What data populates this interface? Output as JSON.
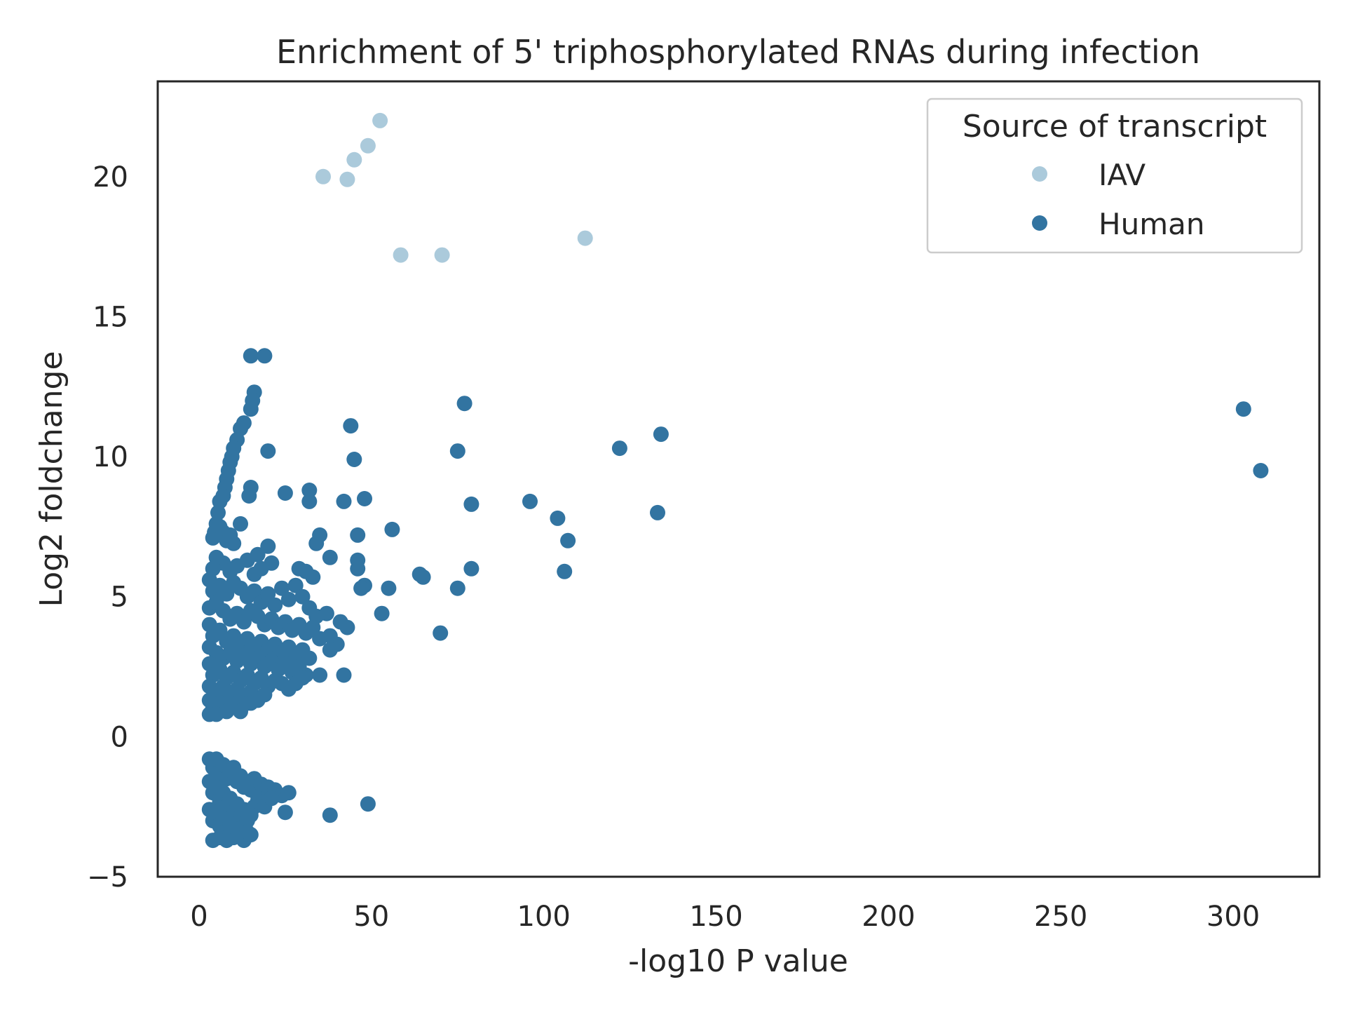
{
  "chart_data": {
    "type": "scatter",
    "title": "Enrichment of 5' triphosphorylated RNAs during infection",
    "xlabel": "-log10 P value",
    "ylabel": "Log2 foldchange",
    "xlim": [
      -12,
      325
    ],
    "ylim": [
      -5,
      23.4
    ],
    "xticks": [
      0,
      50,
      100,
      150,
      200,
      250,
      300
    ],
    "yticks": [
      -5,
      0,
      5,
      10,
      15,
      20
    ],
    "xtick_labels": [
      "0",
      "50",
      "100",
      "150",
      "200",
      "250",
      "300"
    ],
    "ytick_labels": [
      "−5",
      "0",
      "5",
      "10",
      "15",
      "20"
    ],
    "grid": false,
    "legend": {
      "title": "Source of transcript",
      "position": "top-right"
    },
    "series": [
      {
        "name": "IAV",
        "color": "#abcadb",
        "points": [
          [
            36,
            20
          ],
          [
            43,
            19.9
          ],
          [
            45,
            20.6
          ],
          [
            49,
            21.1
          ],
          [
            52.5,
            22
          ],
          [
            58.5,
            17.2
          ],
          [
            70.5,
            17.2
          ],
          [
            112,
            17.8
          ]
        ]
      },
      {
        "name": "Human",
        "color": "#3274a1",
        "points": [
          [
            15,
            13.6
          ],
          [
            19,
            13.6
          ],
          [
            16,
            12.3
          ],
          [
            15.5,
            12.0
          ],
          [
            15,
            11.7
          ],
          [
            13,
            11.2
          ],
          [
            12,
            11.0
          ],
          [
            11,
            10.6
          ],
          [
            10,
            10.3
          ],
          [
            9.5,
            10.0
          ],
          [
            9,
            9.8
          ],
          [
            8.5,
            9.5
          ],
          [
            8,
            9.2
          ],
          [
            7.5,
            8.9
          ],
          [
            7,
            8.6
          ],
          [
            6,
            8.4
          ],
          [
            5.5,
            8.0
          ],
          [
            5,
            7.6
          ],
          [
            4.5,
            7.3
          ],
          [
            4,
            7.1
          ],
          [
            5,
            7.4
          ],
          [
            6,
            7.5
          ],
          [
            7,
            7.3
          ],
          [
            8,
            7.0
          ],
          [
            9,
            7.2
          ],
          [
            10,
            6.9
          ],
          [
            12,
            7.6
          ],
          [
            15,
            8.9
          ],
          [
            14.5,
            8.6
          ],
          [
            17,
            6.5
          ],
          [
            20,
            6.8
          ],
          [
            21,
            6.2
          ],
          [
            18,
            6.0
          ],
          [
            16,
            5.8
          ],
          [
            14,
            6.3
          ],
          [
            11,
            6.1
          ],
          [
            9,
            5.9
          ],
          [
            7,
            6.2
          ],
          [
            5,
            6.4
          ],
          [
            4,
            6.0
          ],
          [
            3,
            5.6
          ],
          [
            4,
            5.2
          ],
          [
            6,
            5.4
          ],
          [
            8,
            5.1
          ],
          [
            10,
            5.5
          ],
          [
            12,
            5.3
          ],
          [
            14,
            5.0
          ],
          [
            16,
            5.2
          ],
          [
            18,
            4.8
          ],
          [
            20,
            5.1
          ],
          [
            22,
            4.7
          ],
          [
            24,
            5.3
          ],
          [
            26,
            4.9
          ],
          [
            28,
            5.4
          ],
          [
            30,
            5.0
          ],
          [
            32,
            4.6
          ],
          [
            34,
            4.3
          ],
          [
            31,
            5.9
          ],
          [
            29,
            6.0
          ],
          [
            33,
            5.7
          ],
          [
            3,
            4.6
          ],
          [
            5,
            4.8
          ],
          [
            7,
            4.5
          ],
          [
            9,
            4.2
          ],
          [
            11,
            4.4
          ],
          [
            13,
            4.1
          ],
          [
            15,
            4.5
          ],
          [
            17,
            4.3
          ],
          [
            19,
            4.0
          ],
          [
            21,
            4.2
          ],
          [
            23,
            3.9
          ],
          [
            25,
            4.1
          ],
          [
            27,
            3.8
          ],
          [
            29,
            4.0
          ],
          [
            31,
            3.7
          ],
          [
            33,
            3.9
          ],
          [
            35,
            3.5
          ],
          [
            3,
            4.0
          ],
          [
            4,
            3.6
          ],
          [
            6,
            3.8
          ],
          [
            8,
            3.4
          ],
          [
            10,
            3.6
          ],
          [
            12,
            3.3
          ],
          [
            14,
            3.5
          ],
          [
            16,
            3.2
          ],
          [
            18,
            3.4
          ],
          [
            20,
            3.1
          ],
          [
            22,
            3.3
          ],
          [
            24,
            3.0
          ],
          [
            26,
            3.2
          ],
          [
            28,
            2.9
          ],
          [
            30,
            3.1
          ],
          [
            32,
            2.8
          ],
          [
            3,
            3.2
          ],
          [
            5,
            3.0
          ],
          [
            7,
            2.8
          ],
          [
            9,
            3.0
          ],
          [
            11,
            2.7
          ],
          [
            13,
            2.9
          ],
          [
            15,
            2.6
          ],
          [
            17,
            2.8
          ],
          [
            19,
            2.5
          ],
          [
            21,
            2.7
          ],
          [
            23,
            2.4
          ],
          [
            25,
            2.6
          ],
          [
            27,
            2.3
          ],
          [
            29,
            2.5
          ],
          [
            31,
            2.2
          ],
          [
            3,
            2.6
          ],
          [
            4,
            2.2
          ],
          [
            6,
            2.4
          ],
          [
            8,
            2.1
          ],
          [
            10,
            2.3
          ],
          [
            12,
            2.0
          ],
          [
            14,
            2.2
          ],
          [
            16,
            1.9
          ],
          [
            18,
            2.1
          ],
          [
            20,
            1.8
          ],
          [
            22,
            2.0
          ],
          [
            24,
            1.9
          ],
          [
            26,
            1.7
          ],
          [
            28,
            1.9
          ],
          [
            30,
            2.1
          ],
          [
            3,
            1.8
          ],
          [
            5,
            1.6
          ],
          [
            7,
            1.8
          ],
          [
            9,
            1.5
          ],
          [
            11,
            1.7
          ],
          [
            13,
            1.4
          ],
          [
            15,
            1.6
          ],
          [
            17,
            1.3
          ],
          [
            19,
            1.5
          ],
          [
            3,
            1.3
          ],
          [
            4,
            1.0
          ],
          [
            6,
            1.2
          ],
          [
            8,
            0.9
          ],
          [
            10,
            1.1
          ],
          [
            12,
            0.9
          ],
          [
            14,
            1.2
          ],
          [
            3,
            0.8
          ],
          [
            5,
            0.8
          ],
          [
            15,
            1.2
          ],
          [
            20,
            10.2
          ],
          [
            25,
            8.7
          ],
          [
            32,
            8.8
          ],
          [
            32,
            8.4
          ],
          [
            35,
            7.2
          ],
          [
            34,
            6.9
          ],
          [
            38,
            6.4
          ],
          [
            37,
            4.4
          ],
          [
            41,
            4.1
          ],
          [
            43,
            3.9
          ],
          [
            38,
            3.6
          ],
          [
            40,
            3.3
          ],
          [
            38,
            3.1
          ],
          [
            35,
            2.2
          ],
          [
            42,
            2.2
          ],
          [
            44,
            11.1
          ],
          [
            45,
            9.9
          ],
          [
            42,
            8.4
          ],
          [
            48,
            8.5
          ],
          [
            46,
            7.2
          ],
          [
            46,
            6.3
          ],
          [
            46,
            6.0
          ],
          [
            48,
            5.4
          ],
          [
            47,
            5.3
          ],
          [
            53,
            4.4
          ],
          [
            55,
            5.3
          ],
          [
            56,
            7.4
          ],
          [
            64,
            5.8
          ],
          [
            65,
            5.7
          ],
          [
            70,
            3.7
          ],
          [
            75,
            5.3
          ],
          [
            75,
            10.2
          ],
          [
            77,
            11.9
          ],
          [
            79,
            8.3
          ],
          [
            79,
            6.0
          ],
          [
            96,
            8.4
          ],
          [
            104,
            7.8
          ],
          [
            107,
            7.0
          ],
          [
            106,
            5.9
          ],
          [
            122,
            10.3
          ],
          [
            133,
            8.0
          ],
          [
            134,
            10.8
          ],
          [
            303,
            11.7
          ],
          [
            308,
            9.5
          ],
          [
            3,
            -0.8
          ],
          [
            4,
            -1.1
          ],
          [
            5,
            -0.8
          ],
          [
            6,
            -1.3
          ],
          [
            7,
            -1.0
          ],
          [
            8,
            -1.5
          ],
          [
            9,
            -1.2
          ],
          [
            10,
            -1.1
          ],
          [
            11,
            -1.6
          ],
          [
            12,
            -1.4
          ],
          [
            13,
            -1.8
          ],
          [
            14,
            -1.6
          ],
          [
            15,
            -1.9
          ],
          [
            16,
            -1.5
          ],
          [
            17,
            -2.1
          ],
          [
            18,
            -1.7
          ],
          [
            20,
            -1.8
          ],
          [
            22,
            -1.9
          ],
          [
            24,
            -2.1
          ],
          [
            3,
            -1.6
          ],
          [
            4,
            -2.0
          ],
          [
            5,
            -1.8
          ],
          [
            6,
            -2.3
          ],
          [
            7,
            -2.0
          ],
          [
            8,
            -2.5
          ],
          [
            9,
            -2.2
          ],
          [
            10,
            -2.7
          ],
          [
            11,
            -2.4
          ],
          [
            12,
            -2.9
          ],
          [
            13,
            -2.6
          ],
          [
            14,
            -3.0
          ],
          [
            15,
            -2.8
          ],
          [
            16,
            -2.5
          ],
          [
            17,
            -2.3
          ],
          [
            19,
            -2.5
          ],
          [
            21,
            -2.2
          ],
          [
            3,
            -2.6
          ],
          [
            4,
            -3.0
          ],
          [
            5,
            -2.7
          ],
          [
            6,
            -3.2
          ],
          [
            7,
            -2.9
          ],
          [
            8,
            -3.4
          ],
          [
            9,
            -3.1
          ],
          [
            10,
            -3.6
          ],
          [
            11,
            -3.3
          ],
          [
            12,
            -3.5
          ],
          [
            13,
            -3.7
          ],
          [
            14,
            -3.4
          ],
          [
            15,
            -3.5
          ],
          [
            4,
            -3.7
          ],
          [
            6,
            -3.6
          ],
          [
            8,
            -3.7
          ],
          [
            25,
            -2.7
          ],
          [
            26,
            -2.0
          ],
          [
            38,
            -2.8
          ],
          [
            49,
            -2.4
          ]
        ]
      }
    ]
  }
}
